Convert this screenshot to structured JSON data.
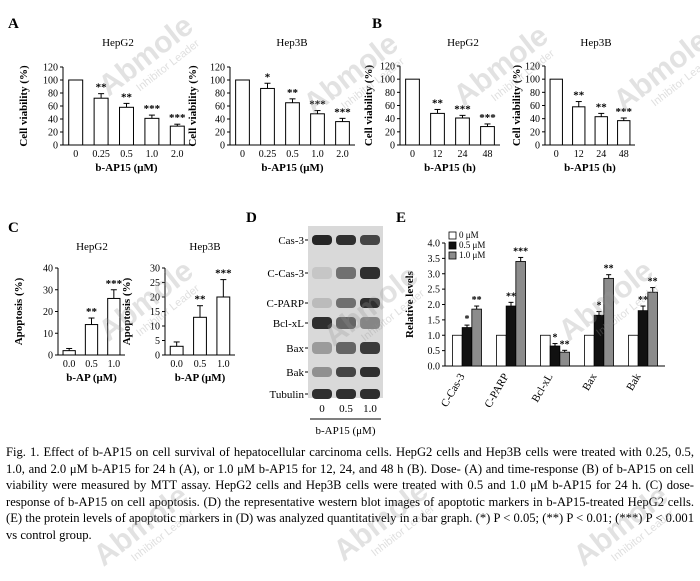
{
  "panels": [
    {
      "letter": "A",
      "title": "HepG2",
      "ylabel": "Cell viability (%)",
      "xlabel": "b-AP15 (μM)",
      "cats": [
        "0",
        "0.25",
        "0.5",
        "1.0",
        "2.0"
      ],
      "values": [
        100,
        72,
        58,
        41,
        29
      ],
      "errs": [
        0,
        7,
        6,
        5,
        3
      ],
      "sig": [
        "",
        "**",
        "**",
        "***",
        "***"
      ],
      "ymax": 120,
      "ystep": 20
    },
    {
      "letter": "",
      "title": "Hep3B",
      "ylabel": "Cell viability (%)",
      "xlabel": "b-AP15 (μM)",
      "cats": [
        "0",
        "0.25",
        "0.5",
        "1.0",
        "2.0"
      ],
      "values": [
        100,
        87,
        65,
        48,
        36
      ],
      "errs": [
        0,
        8,
        6,
        5,
        5
      ],
      "sig": [
        "",
        "*",
        "**",
        "***",
        "***"
      ],
      "ymax": 120,
      "ystep": 20
    },
    {
      "letter": "B",
      "title": "HepG2",
      "ylabel": "Cell viability (%)",
      "xlabel": "b-AP15 (h)",
      "cats": [
        "0",
        "12",
        "24",
        "48"
      ],
      "values": [
        100,
        48,
        41,
        28
      ],
      "errs": [
        0,
        6,
        4,
        4
      ],
      "sig": [
        "",
        "**",
        "***",
        "***"
      ],
      "ymax": 120,
      "ystep": 20
    },
    {
      "letter": "",
      "title": "Hep3B",
      "ylabel": "Cell viability (%)",
      "xlabel": "b-AP15 (h)",
      "cats": [
        "0",
        "12",
        "24",
        "48"
      ],
      "values": [
        100,
        58,
        43,
        37
      ],
      "errs": [
        0,
        8,
        5,
        4
      ],
      "sig": [
        "",
        "**",
        "**",
        "***"
      ],
      "ymax": 120,
      "ystep": 20
    },
    {
      "letter": "C",
      "title": "HepG2",
      "ylabel": "Apoptosis (%)",
      "xlabel": "b-AP (μM)",
      "cats": [
        "0.0",
        "0.5",
        "1.0"
      ],
      "values": [
        2,
        14,
        26
      ],
      "errs": [
        1,
        3,
        4
      ],
      "sig": [
        "",
        "**",
        "***"
      ],
      "ymax": 40,
      "ystep": 10
    },
    {
      "letter": "",
      "title": "Hep3B",
      "ylabel": "Apoptosis (%)",
      "xlabel": "b-AP (μM)",
      "cats": [
        "0.0",
        "0.5",
        "1.0"
      ],
      "values": [
        3,
        13,
        20
      ],
      "errs": [
        1.5,
        4,
        6
      ],
      "sig": [
        "",
        "**",
        "***"
      ],
      "ymax": 30,
      "ystep": 5
    }
  ],
  "blot": {
    "letter": "D",
    "bands": [
      "Cas-3",
      "C-Cas-3",
      "C-PARP",
      "Bcl-xL",
      "Bax",
      "Bak",
      "Tubulin"
    ],
    "lanes": [
      "0",
      "0.5",
      "1.0"
    ],
    "xlabel": "b-AP15 (μM)"
  },
  "panelE": {
    "letter": "E",
    "ylabel": "Relative levels",
    "categories": [
      "C-Cas-3",
      "C-PARP",
      "Bcl-xL",
      "Bax",
      "Bak"
    ],
    "ylim": [
      0,
      4.0
    ],
    "ystep": 0.5,
    "legend": [
      "0 μM",
      "0.5 μM",
      "1.0 μM"
    ],
    "colors": [
      "#ffffff",
      "#111111",
      "#8c8c8c"
    ],
    "series": [
      {
        "name": "0 μM",
        "values": [
          1,
          1,
          1,
          1,
          1
        ],
        "errs": [
          0,
          0,
          0,
          0,
          0
        ],
        "sig": [
          "",
          "",
          "",
          "",
          ""
        ]
      },
      {
        "name": "0.5 μM",
        "values": [
          1.25,
          1.95,
          0.65,
          1.65,
          1.8
        ],
        "errs": [
          0.08,
          0.12,
          0.08,
          0.12,
          0.15
        ],
        "sig": [
          "*",
          "**",
          "*",
          "*",
          "**"
        ]
      },
      {
        "name": "1.0 μM",
        "values": [
          1.85,
          3.4,
          0.45,
          2.85,
          2.4
        ],
        "errs": [
          0.1,
          0.13,
          0.06,
          0.12,
          0.15
        ],
        "sig": [
          "**",
          "***",
          "**",
          "**",
          "**"
        ]
      }
    ]
  },
  "caption": "Fig. 1. Effect of b-AP15 on cell survival of hepatocellular carcinoma cells. HepG2 cells and Hep3B cells were treated with 0.25, 0.5, 1.0, and 2.0 μM b-AP15 for 24 h (A), or 1.0 μM b-AP15 for 12, 24, and 48 h (B). Dose- (A) and time-response (B) of b-AP15 on cell viability were measured by MTT assay. HepG2 cells and Hep3B cells were treated with 0.5 and 1.0 μM b-AP15 for 24 h. (C) dose-response of b-AP15 on cell apoptosis. (D) the representative western blot images of apoptotic markers in b-AP15-treated HepG2 cells. (E) the protein levels of apoptotic markers in (D) was analyzed quantitatively in a bar graph. (*) P < 0.05; (**) P < 0.01; (***) P < 0.001 vs control group.",
  "watermark": {
    "brand": "Abmole",
    "tagline": "Inhibitor Leader"
  }
}
